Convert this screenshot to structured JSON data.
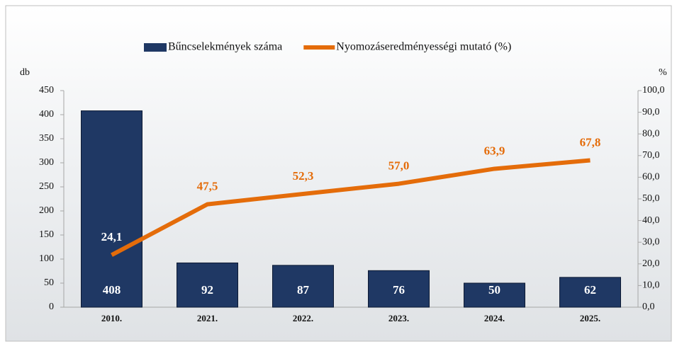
{
  "chart_data": {
    "type": "combo",
    "categories": [
      "2010.",
      "2021.",
      "2022.",
      "2023.",
      "2024.",
      "2025."
    ],
    "series": [
      {
        "name": "Bűncselekmények száma",
        "type": "bar",
        "color": "#1f3864",
        "values": [
          408,
          92,
          87,
          76,
          50,
          62
        ]
      },
      {
        "name": "Nyomozáseredményességi mutató (%)",
        "type": "line",
        "axis": "y2",
        "color": "#e46c0a",
        "values": [
          24.1,
          47.5,
          52.3,
          57.0,
          63.9,
          67.8
        ],
        "value_labels": [
          "24,1",
          "47,5",
          "52,3",
          "57,0",
          "63,9",
          "67,8"
        ]
      }
    ],
    "ylabel": "db",
    "y2label": "%",
    "ylim": [
      0,
      450
    ],
    "yticks": [
      0,
      50,
      100,
      150,
      200,
      250,
      300,
      350,
      400,
      450
    ],
    "y2lim": [
      0,
      100
    ],
    "y2ticks": [
      {
        "value": 0,
        "label": "0,0"
      },
      {
        "value": 10,
        "label": "10,0"
      },
      {
        "value": 20,
        "label": "20,0"
      },
      {
        "value": 30,
        "label": "30,0"
      },
      {
        "value": 40,
        "label": "40,0"
      },
      {
        "value": 50,
        "label": "50,0"
      },
      {
        "value": 60,
        "label": "60,0"
      },
      {
        "value": 70,
        "label": "70,0"
      },
      {
        "value": 80,
        "label": "80,0"
      },
      {
        "value": 90,
        "label": "90,0"
      },
      {
        "value": 100,
        "label": "100,0"
      }
    ],
    "legend": "top"
  }
}
